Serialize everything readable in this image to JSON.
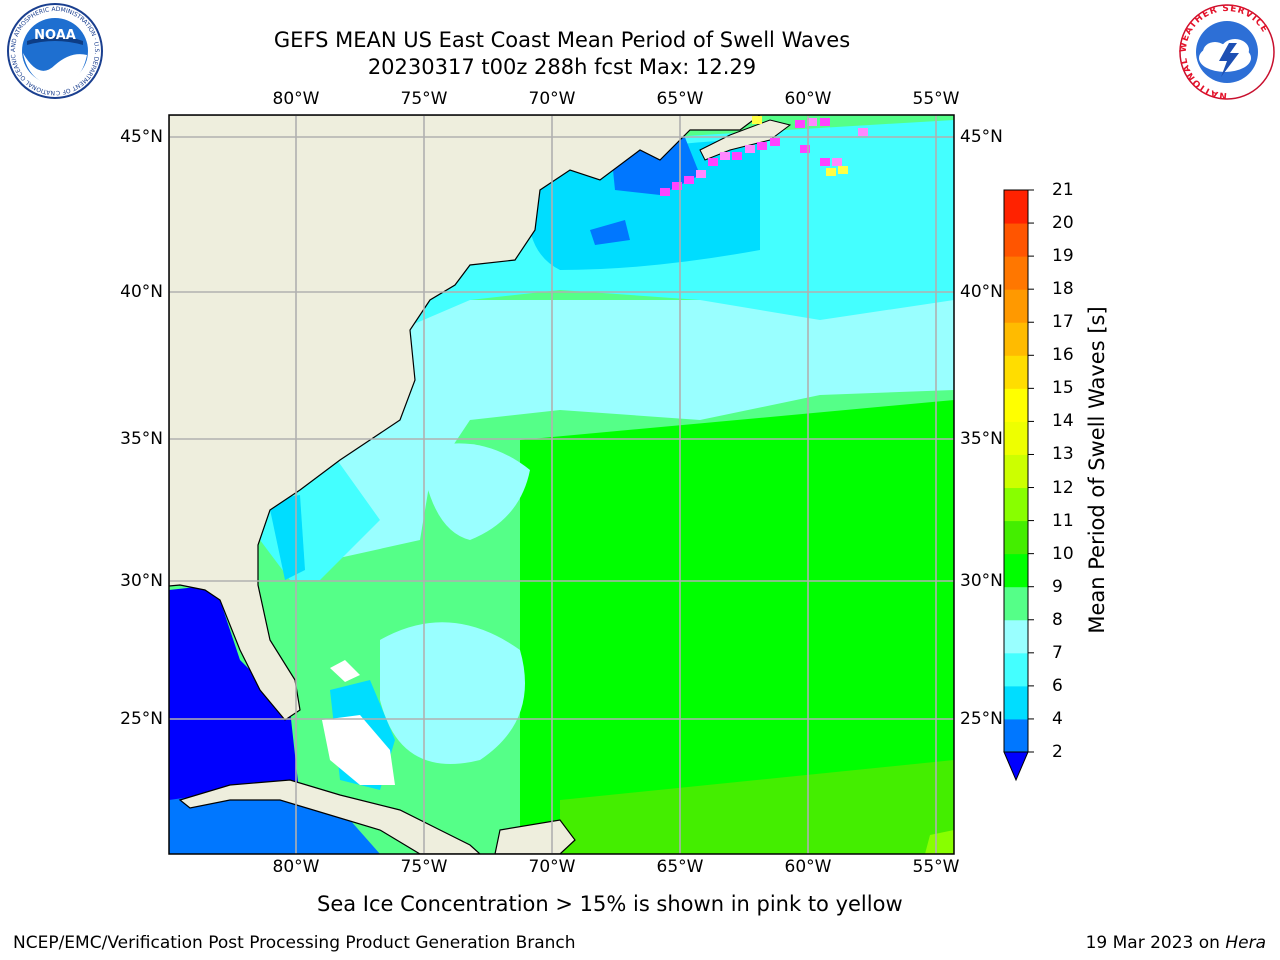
{
  "header": {
    "title_line1": "GEFS MEAN US East Coast Mean Period of Swell Waves",
    "title_line2": "20230317 t00z 288h fcst   Max: 12.29"
  },
  "logos": {
    "left_name": "NOAA",
    "left_ring_text": "NATIONAL OCEANIC AND ATMOSPHERIC ADMINISTRATION · U.S. DEPARTMENT OF COMMERCE",
    "right_ring_text": "NATIONAL WEATHER SERVICE"
  },
  "map": {
    "lon_labels": [
      "80°W",
      "75°W",
      "70°W",
      "65°W",
      "60°W",
      "55°W"
    ],
    "lat_labels": [
      "45°N",
      "40°N",
      "35°N",
      "30°N",
      "25°N"
    ],
    "colors": {
      "land": "#eeeedd",
      "coast": "#000000",
      "grid": "#b0b0b0",
      "no_data": "#ffffff"
    },
    "ice_colors": [
      "#ff44ff",
      "#ff88ff",
      "#ffff44"
    ]
  },
  "colorbar": {
    "label": "Mean Period of Swell Waves [s]",
    "ticks": [
      "2",
      "4",
      "6",
      "7",
      "8",
      "9",
      "10",
      "11",
      "12",
      "13",
      "14",
      "15",
      "16",
      "17",
      "18",
      "19",
      "20",
      "21"
    ],
    "levels": [
      2,
      4,
      6,
      7,
      8,
      9,
      10,
      11,
      12,
      13,
      14,
      15,
      16,
      17,
      18,
      19,
      20,
      21
    ],
    "colors": [
      "#0077ff",
      "#00ddff",
      "#44ffff",
      "#99ffff",
      "#55ff88",
      "#00ff00",
      "#44ee00",
      "#88ff00",
      "#ccff00",
      "#eeff00",
      "#ffff00",
      "#ffdd00",
      "#ffbb00",
      "#ff9900",
      "#ff7700",
      "#ff5500",
      "#ff2200"
    ],
    "under_color": "#0000ff"
  },
  "notes": {
    "ice_note": "Sea Ice Concentration > 15% is shown in pink to yellow"
  },
  "footer": {
    "left": "NCEP/EMC/Verification Post Processing Product Generation Branch",
    "right_date": "19 Mar 2023 on ",
    "right_machine": "Hera"
  }
}
